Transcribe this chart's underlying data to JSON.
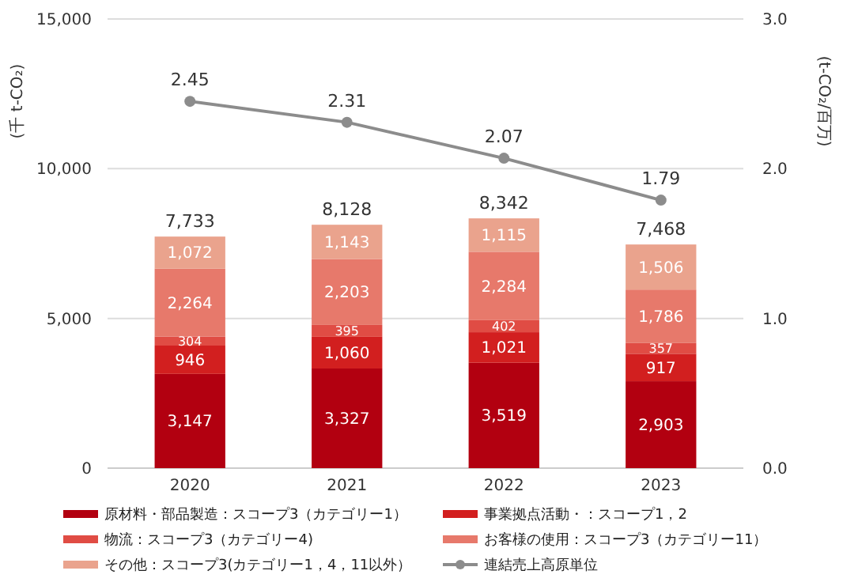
{
  "chart_data": {
    "type": "bar",
    "stacked": true,
    "categories": [
      "2020",
      "2021",
      "2022",
      "2023"
    ],
    "ylabel": "(千 t-CO₂)",
    "y2label": "(t-CO₂/百万)",
    "ylim": [
      0,
      15000
    ],
    "yticks": [
      {
        "value": 0,
        "label": "0"
      },
      {
        "value": 5000,
        "label": "5,000"
      },
      {
        "value": 10000,
        "label": "10,000"
      },
      {
        "value": 15000,
        "label": "15,000"
      }
    ],
    "y2lim": [
      0,
      3
    ],
    "y2ticks": [
      {
        "value": 0,
        "label": "0.0"
      },
      {
        "value": 1,
        "label": "1.0"
      },
      {
        "value": 2,
        "label": "2.0"
      },
      {
        "value": 3,
        "label": "3.0"
      }
    ],
    "grid": "y",
    "legend": "bottom",
    "series": [
      {
        "name": "原材料・部品製造：スコープ3（カテゴリー1）",
        "color": "#b20010",
        "values": [
          3147,
          3327,
          3519,
          2903
        ],
        "value_labels": [
          "3,147",
          "3,327",
          "3,519",
          "2,903"
        ]
      },
      {
        "name": "事業拠点活動・：スコープ1，2",
        "color": "#d21f1f",
        "values": [
          946,
          1060,
          1021,
          917
        ],
        "value_labels": [
          "946",
          "1,060",
          "1,021",
          "917"
        ]
      },
      {
        "name": "物流：スコープ3（カテゴリー4)",
        "color": "#e04c44",
        "values": [
          304,
          395,
          402,
          357
        ],
        "value_labels": [
          "304",
          "395",
          "402",
          "357"
        ]
      },
      {
        "name": "お客様の使用：スコープ3（カテゴリー11）",
        "color": "#e7796b",
        "values": [
          2264,
          2203,
          2284,
          1786
        ],
        "value_labels": [
          "2,264",
          "2,203",
          "2,284",
          "1,786"
        ]
      },
      {
        "name": "その他：スコープ3(カテゴリー1，4，11以外）",
        "color": "#eaa38d",
        "values": [
          1072,
          1143,
          1115,
          1506
        ],
        "value_labels": [
          "1,072",
          "1,143",
          "1,115",
          "1,506"
        ]
      },
      {
        "name": "連結売上高原単位",
        "type": "line",
        "axis": "y2",
        "color": "#8c8c8c",
        "marker": "circle",
        "values": [
          2.45,
          2.31,
          2.07,
          1.79
        ],
        "value_labels": [
          "2.45",
          "2.31",
          "2.07",
          "1.79"
        ]
      }
    ],
    "totals": [
      "7,733",
      "8,128",
      "8,342",
      "7,468"
    ]
  }
}
